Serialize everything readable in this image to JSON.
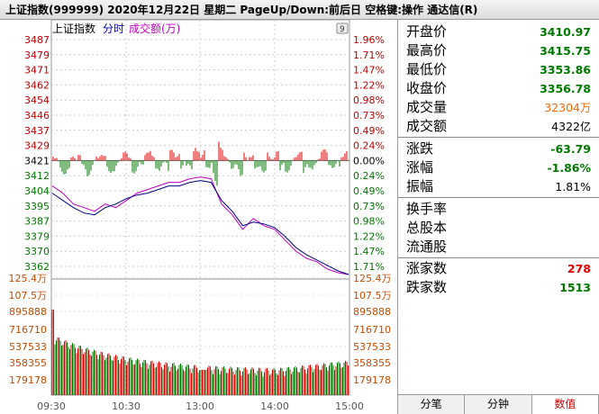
{
  "title": "上证指数(999999)  2020年12月22日  星期二  PageUp/Down:前后日  空格键:操作  通达信(R)",
  "legend": {
    "name": "上证指数",
    "mode": "分时",
    "volume": "成交额(万)"
  },
  "price_axis": {
    "labels": [
      "3487",
      "3479",
      "3471",
      "3462",
      "3454",
      "3446",
      "3437",
      "3429",
      "3421",
      "3412",
      "3404",
      "3395",
      "3387",
      "3379",
      "3370",
      "3362"
    ],
    "percents": [
      "1.96%",
      "1.71%",
      "1.47%",
      "1.22%",
      "0.98%",
      "0.73%",
      "0.49%",
      "0.24%",
      "0.00%",
      "0.24%",
      "0.49%",
      "0.73%",
      "0.98%",
      "1.22%",
      "1.47%",
      "1.71%"
    ]
  },
  "volume_axis": {
    "labels": [
      "125.4万",
      "107.5万",
      "895888",
      "716710",
      "537533",
      "358355",
      "179178"
    ]
  },
  "time_axis": [
    "09:30",
    "10:30",
    "13:00",
    "14:00",
    "15:00"
  ],
  "chart_data": {
    "type": "line",
    "prev_close": 3421,
    "series": [
      {
        "values": [
          3408,
          3404,
          3398,
          3396,
          3394,
          3398,
          3396,
          3400,
          3404,
          3406,
          3408,
          3410,
          3410,
          3412,
          3413,
          3412,
          3398,
          3392,
          3384,
          3390,
          3386,
          3384,
          3378,
          3372,
          3368,
          3366,
          3362,
          3360,
          3359
        ]
      },
      {
        "values": [
          3404,
          3400,
          3396,
          3393,
          3392,
          3396,
          3398,
          3401,
          3403,
          3404,
          3406,
          3408,
          3408,
          3410,
          3411,
          3410,
          3400,
          3394,
          3386,
          3388,
          3387,
          3385,
          3380,
          3374,
          3370,
          3367,
          3364,
          3361,
          3359
        ]
      }
    ],
    "ylim": [
      3357,
      3490
    ]
  },
  "info": {
    "open": {
      "label": "开盘价",
      "value": "3410.97"
    },
    "high": {
      "label": "最高价",
      "value": "3415.75"
    },
    "low": {
      "label": "最低价",
      "value": "3353.86"
    },
    "close": {
      "label": "收盘价",
      "value": "3356.78"
    },
    "volume": {
      "label": "成交量",
      "value": "32304",
      "unit": "万"
    },
    "amount": {
      "label": "成交额",
      "value": "4322",
      "unit": "亿"
    },
    "change": {
      "label": "涨跌",
      "value": "-63.79"
    },
    "change_pct": {
      "label": "涨幅",
      "value": "-1.86%"
    },
    "amplitude": {
      "label": "振幅",
      "value": "1.81%"
    },
    "turnover": {
      "label": "换手率"
    },
    "total_shares": {
      "label": "总股本"
    },
    "float_shares": {
      "label": "流通股"
    },
    "advancers": {
      "label": "涨家数",
      "value": "278"
    },
    "decliners": {
      "label": "跌家数",
      "value": "1513"
    }
  },
  "tabs": [
    "分笔",
    "分钟",
    "数值"
  ],
  "colors": {
    "up": "#e00000",
    "down": "#007800",
    "price_line": "#000080",
    "avg_line": "#c000c0",
    "axis_label": "#c84b00"
  }
}
